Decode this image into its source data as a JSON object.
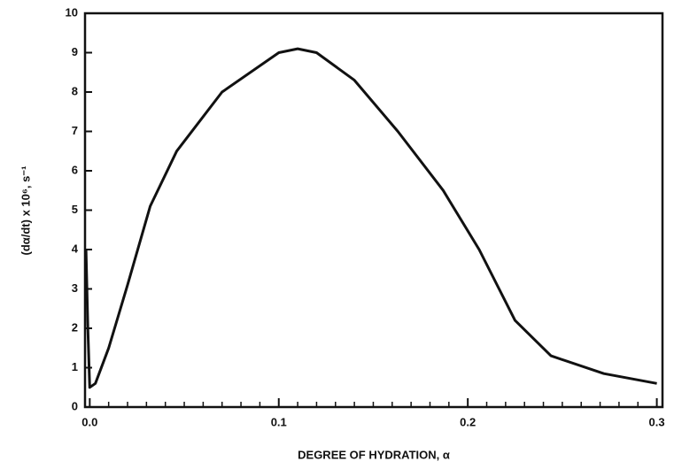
{
  "chart_data": {
    "type": "line",
    "x_label": "DEGREE OF HYDRATION, α",
    "y_label": "(dα/dt) x 10⁶, s⁻¹",
    "x": [
      -0.002,
      -0.001,
      0.0,
      0.003,
      0.01,
      0.02,
      0.032,
      0.046,
      0.07,
      0.1,
      0.11,
      0.12,
      0.14,
      0.163,
      0.187,
      0.206,
      0.225,
      0.244,
      0.272,
      0.3
    ],
    "series": [
      {
        "name": null,
        "color": "#111111",
        "values": [
          4.0,
          2.0,
          0.5,
          0.6,
          1.5,
          3.1,
          5.1,
          6.5,
          8.0,
          9.0,
          9.1,
          9.0,
          8.3,
          7.0,
          5.5,
          4.0,
          2.2,
          1.3,
          0.85,
          0.6
        ]
      }
    ],
    "xlim": [
      -0.0025,
      0.303
    ],
    "ylim": [
      0,
      10
    ],
    "xticks": [
      {
        "value": 0,
        "label": "0.0"
      },
      0.1,
      0.2,
      0.3
    ],
    "x_minor_ticks": [
      0.01,
      0.02,
      0.03,
      0.04,
      0.05,
      0.06,
      0.07,
      0.08,
      0.09,
      0.11,
      0.12,
      0.13,
      0.14,
      0.15,
      0.16,
      0.17,
      0.18,
      0.19,
      0.21,
      0.22,
      0.23,
      0.24,
      0.25,
      0.26,
      0.27,
      0.28,
      0.29
    ],
    "yticks": [
      0,
      1,
      2,
      3,
      4,
      5,
      6,
      7,
      8,
      9,
      10
    ]
  }
}
